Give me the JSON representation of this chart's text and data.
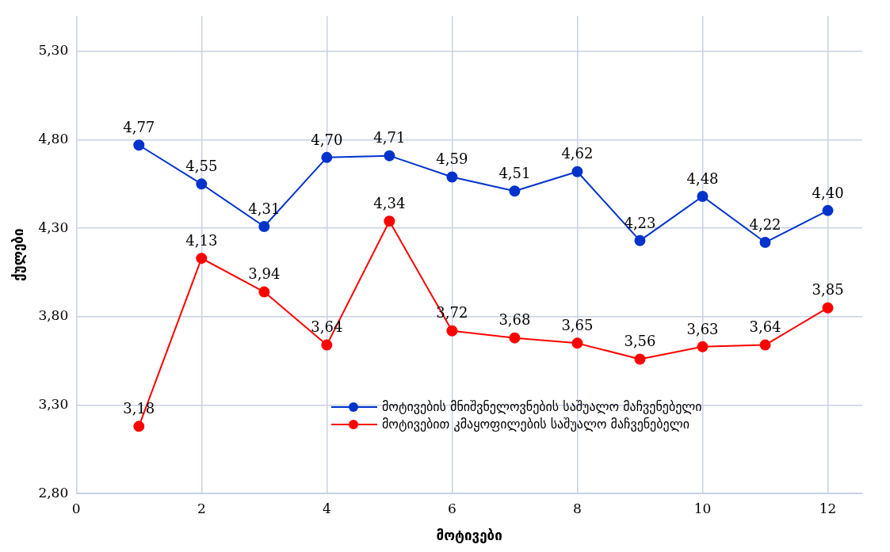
{
  "chart_data": {
    "type": "line",
    "xlabel": "მოტივები",
    "ylabel": "ქულები",
    "x": [
      1,
      2,
      3,
      4,
      5,
      6,
      7,
      8,
      9,
      10,
      11,
      12
    ],
    "series": [
      {
        "name": "მოტივების მნიშვნელოვნების საშუალო მაჩვენებელი",
        "color": "#0033cc",
        "values": [
          4.77,
          4.55,
          4.31,
          4.7,
          4.71,
          4.59,
          4.51,
          4.62,
          4.23,
          4.48,
          4.22,
          4.4
        ],
        "value_labels": [
          "4,77",
          "4,55",
          "4,31",
          "4,70",
          "4,71",
          "4,59",
          "4,51",
          "4,62",
          "4,23",
          "4,48",
          "4,22",
          "4,40"
        ]
      },
      {
        "name": "მოტივებით კმაყოფილების საშუალო მაჩვენებელი",
        "color": "#ff0000",
        "values": [
          3.18,
          4.13,
          3.94,
          3.64,
          4.34,
          3.72,
          3.68,
          3.65,
          3.56,
          3.63,
          3.64,
          3.85
        ],
        "value_labels": [
          "3,18",
          "4,13",
          "3,94",
          "3,64",
          "4,34",
          "3,72",
          "3,68",
          "3,65",
          "3,56",
          "3,63",
          "3,64",
          "3,85"
        ]
      }
    ],
    "xlim": [
      0,
      12.55
    ],
    "xticks": [
      0,
      2,
      4,
      6,
      8,
      10,
      12
    ],
    "ylim": [
      2.8,
      5.5
    ],
    "yticks": [
      {
        "value": 2.8,
        "label": "2,80"
      },
      {
        "value": 3.3,
        "label": "3,30"
      },
      {
        "value": 3.8,
        "label": "3,80"
      },
      {
        "value": 4.3,
        "label": "4,30"
      },
      {
        "value": 4.8,
        "label": "4,80"
      },
      {
        "value": 5.3,
        "label": "5,30"
      }
    ],
    "grid": true,
    "legend": "bottom right",
    "marker": "circle",
    "line_style": "solid"
  }
}
